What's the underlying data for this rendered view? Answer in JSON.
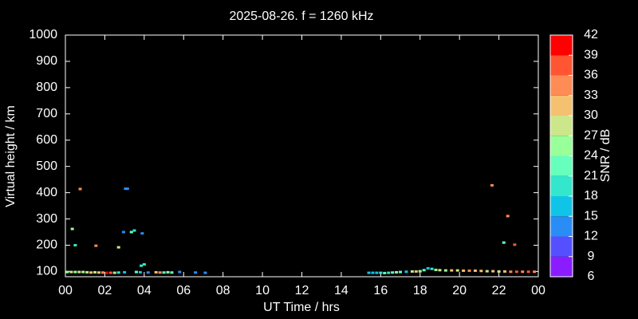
{
  "chart_data": {
    "type": "scatter",
    "title": "2025-08-26. f = 1260 kHz",
    "x_label": "UT Time / hrs",
    "y_label": "Virtual height / km",
    "x": [
      0.35,
      0.5,
      0.75,
      1.55,
      2.7,
      2.95,
      3.35,
      3.5,
      3.05,
      3.15,
      3.9,
      3.85,
      4.0,
      21.65,
      22.45,
      22.25,
      22.8,
      0.1,
      0.3,
      0.5,
      0.7,
      0.9,
      1.1,
      1.3,
      1.5,
      1.7,
      1.9,
      2.1,
      2.3,
      2.5,
      2.7,
      3.0,
      3.6,
      3.8,
      4.2,
      4.6,
      4.8,
      5.0,
      5.2,
      5.4,
      5.8,
      6.6,
      7.1,
      15.4,
      15.6,
      15.8,
      16.0,
      16.2,
      16.4,
      16.6,
      16.8,
      17.0,
      17.3,
      17.6,
      17.8,
      18.0,
      18.2,
      18.4,
      18.6,
      18.8,
      19.0,
      19.3,
      19.6,
      19.9,
      20.2,
      20.5,
      20.8,
      21.1,
      21.4,
      21.7,
      22.0,
      22.3,
      22.6,
      22.9,
      23.2,
      23.5,
      23.8
    ],
    "y": [
      262,
      200,
      414,
      198,
      192,
      250,
      250,
      256,
      415,
      415,
      245,
      122,
      127,
      428,
      311,
      210,
      202,
      98,
      98,
      98,
      98,
      98,
      97,
      96,
      97,
      96,
      96,
      95,
      95,
      95,
      96,
      97,
      98,
      97,
      96,
      97,
      96,
      96,
      97,
      96,
      98,
      96,
      95,
      95,
      95,
      95,
      95,
      94,
      95,
      96,
      97,
      98,
      99,
      100,
      100,
      101,
      105,
      112,
      110,
      106,
      105,
      104,
      104,
      104,
      103,
      103,
      103,
      102,
      101,
      101,
      100,
      100,
      99,
      99,
      99,
      99,
      99
    ],
    "snr": [
      24,
      20,
      33,
      35,
      27,
      12,
      21,
      20,
      12,
      12,
      12,
      18,
      18,
      33,
      33,
      21,
      36,
      24,
      27,
      24,
      27,
      24,
      27,
      30,
      27,
      30,
      33,
      39,
      36,
      24,
      18,
      15,
      21,
      15,
      12,
      30,
      33,
      21,
      24,
      21,
      12,
      12,
      12,
      15,
      15,
      15,
      18,
      21,
      18,
      21,
      24,
      21,
      15,
      27,
      30,
      24,
      21,
      15,
      18,
      24,
      27,
      24,
      30,
      27,
      30,
      33,
      30,
      30,
      27,
      30,
      27,
      30,
      33,
      36,
      33,
      36,
      33
    ],
    "xlim": [
      0,
      24
    ],
    "ylim": [
      80,
      1000
    ],
    "xticks": [
      {
        "value": 0,
        "label": "00"
      },
      {
        "value": 2,
        "label": "02"
      },
      {
        "value": 4,
        "label": "04"
      },
      {
        "value": 6,
        "label": "06"
      },
      {
        "value": 8,
        "label": "08"
      },
      10,
      12,
      14,
      16,
      18,
      20,
      22,
      {
        "value": 24,
        "label": "00"
      }
    ],
    "yticks": [
      100,
      200,
      300,
      400,
      500,
      600,
      700,
      800,
      900,
      1000
    ],
    "colorbar": {
      "label": "SNR / dB",
      "lim": [
        6,
        42
      ],
      "ticks": [
        6,
        9,
        12,
        15,
        18,
        21,
        24,
        27,
        30,
        33,
        36,
        39,
        42
      ],
      "colors": [
        "#8a1cff",
        "#5550ff",
        "#2a8cf5",
        "#10c4e8",
        "#33e6cc",
        "#66ffbb",
        "#99ff99",
        "#cce68a",
        "#f5c070",
        "#ff8c55",
        "#ff5533",
        "#ff0000"
      ]
    }
  }
}
